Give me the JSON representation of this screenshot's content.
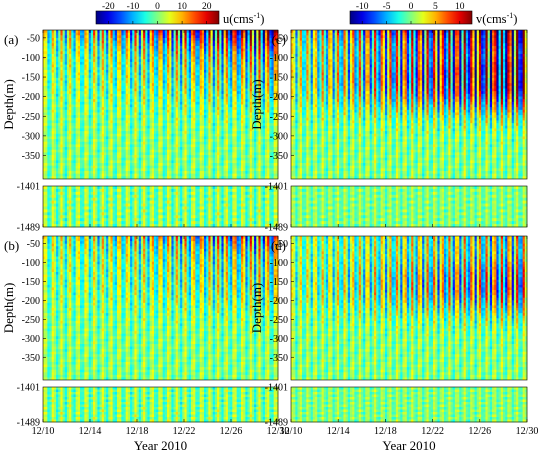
{
  "chart_data": {
    "type": "heatmap",
    "colorbars": [
      {
        "name": "u",
        "label": "u(cms",
        "exponent": "-1",
        "label_close": ")",
        "ticks": [
          -20,
          -10,
          0,
          10,
          20
        ],
        "range": [
          -25,
          25
        ]
      },
      {
        "name": "v",
        "label": "v(cms",
        "exponent": "-1",
        "label_close": ")",
        "ticks": [
          -10,
          -5,
          0,
          5,
          10
        ],
        "range": [
          -12.5,
          12.5
        ]
      }
    ],
    "ylabel": "Depth(m)",
    "xlabel": "Year 2010",
    "x_tick_labels": [
      "12/10",
      "12/14",
      "12/18",
      "12/22",
      "12/26",
      "12/30"
    ],
    "upper_depth_ticks": [
      -50,
      -100,
      -150,
      -200,
      -250,
      -300,
      -350
    ],
    "upper_depth_range": [
      -30,
      -410
    ],
    "deep_tick_labels": [
      "-1401",
      "-1489"
    ],
    "deep_depth_range": [
      -1401,
      -1489
    ],
    "panels": [
      {
        "label": "(a)",
        "variable": "u",
        "colors": [
          "#fa7e00",
          "#b51d00",
          "#00d4ff",
          "#2a5bf7"
        ]
      },
      {
        "label": "(b)",
        "variable": "u",
        "colors": [
          "#fa7e00",
          "#cf2f00",
          "#00d4ff",
          "#4d75f3"
        ]
      },
      {
        "label": "(c)",
        "variable": "v",
        "colors": [
          "#fa7e00",
          "#d20d00",
          "#00d4ff",
          "#1b21c4"
        ]
      },
      {
        "label": "(d)",
        "variable": "v",
        "colors": [
          "#fa7e00",
          "#e03c00",
          "#00d4ff",
          "#3a4ef0"
        ]
      }
    ]
  }
}
